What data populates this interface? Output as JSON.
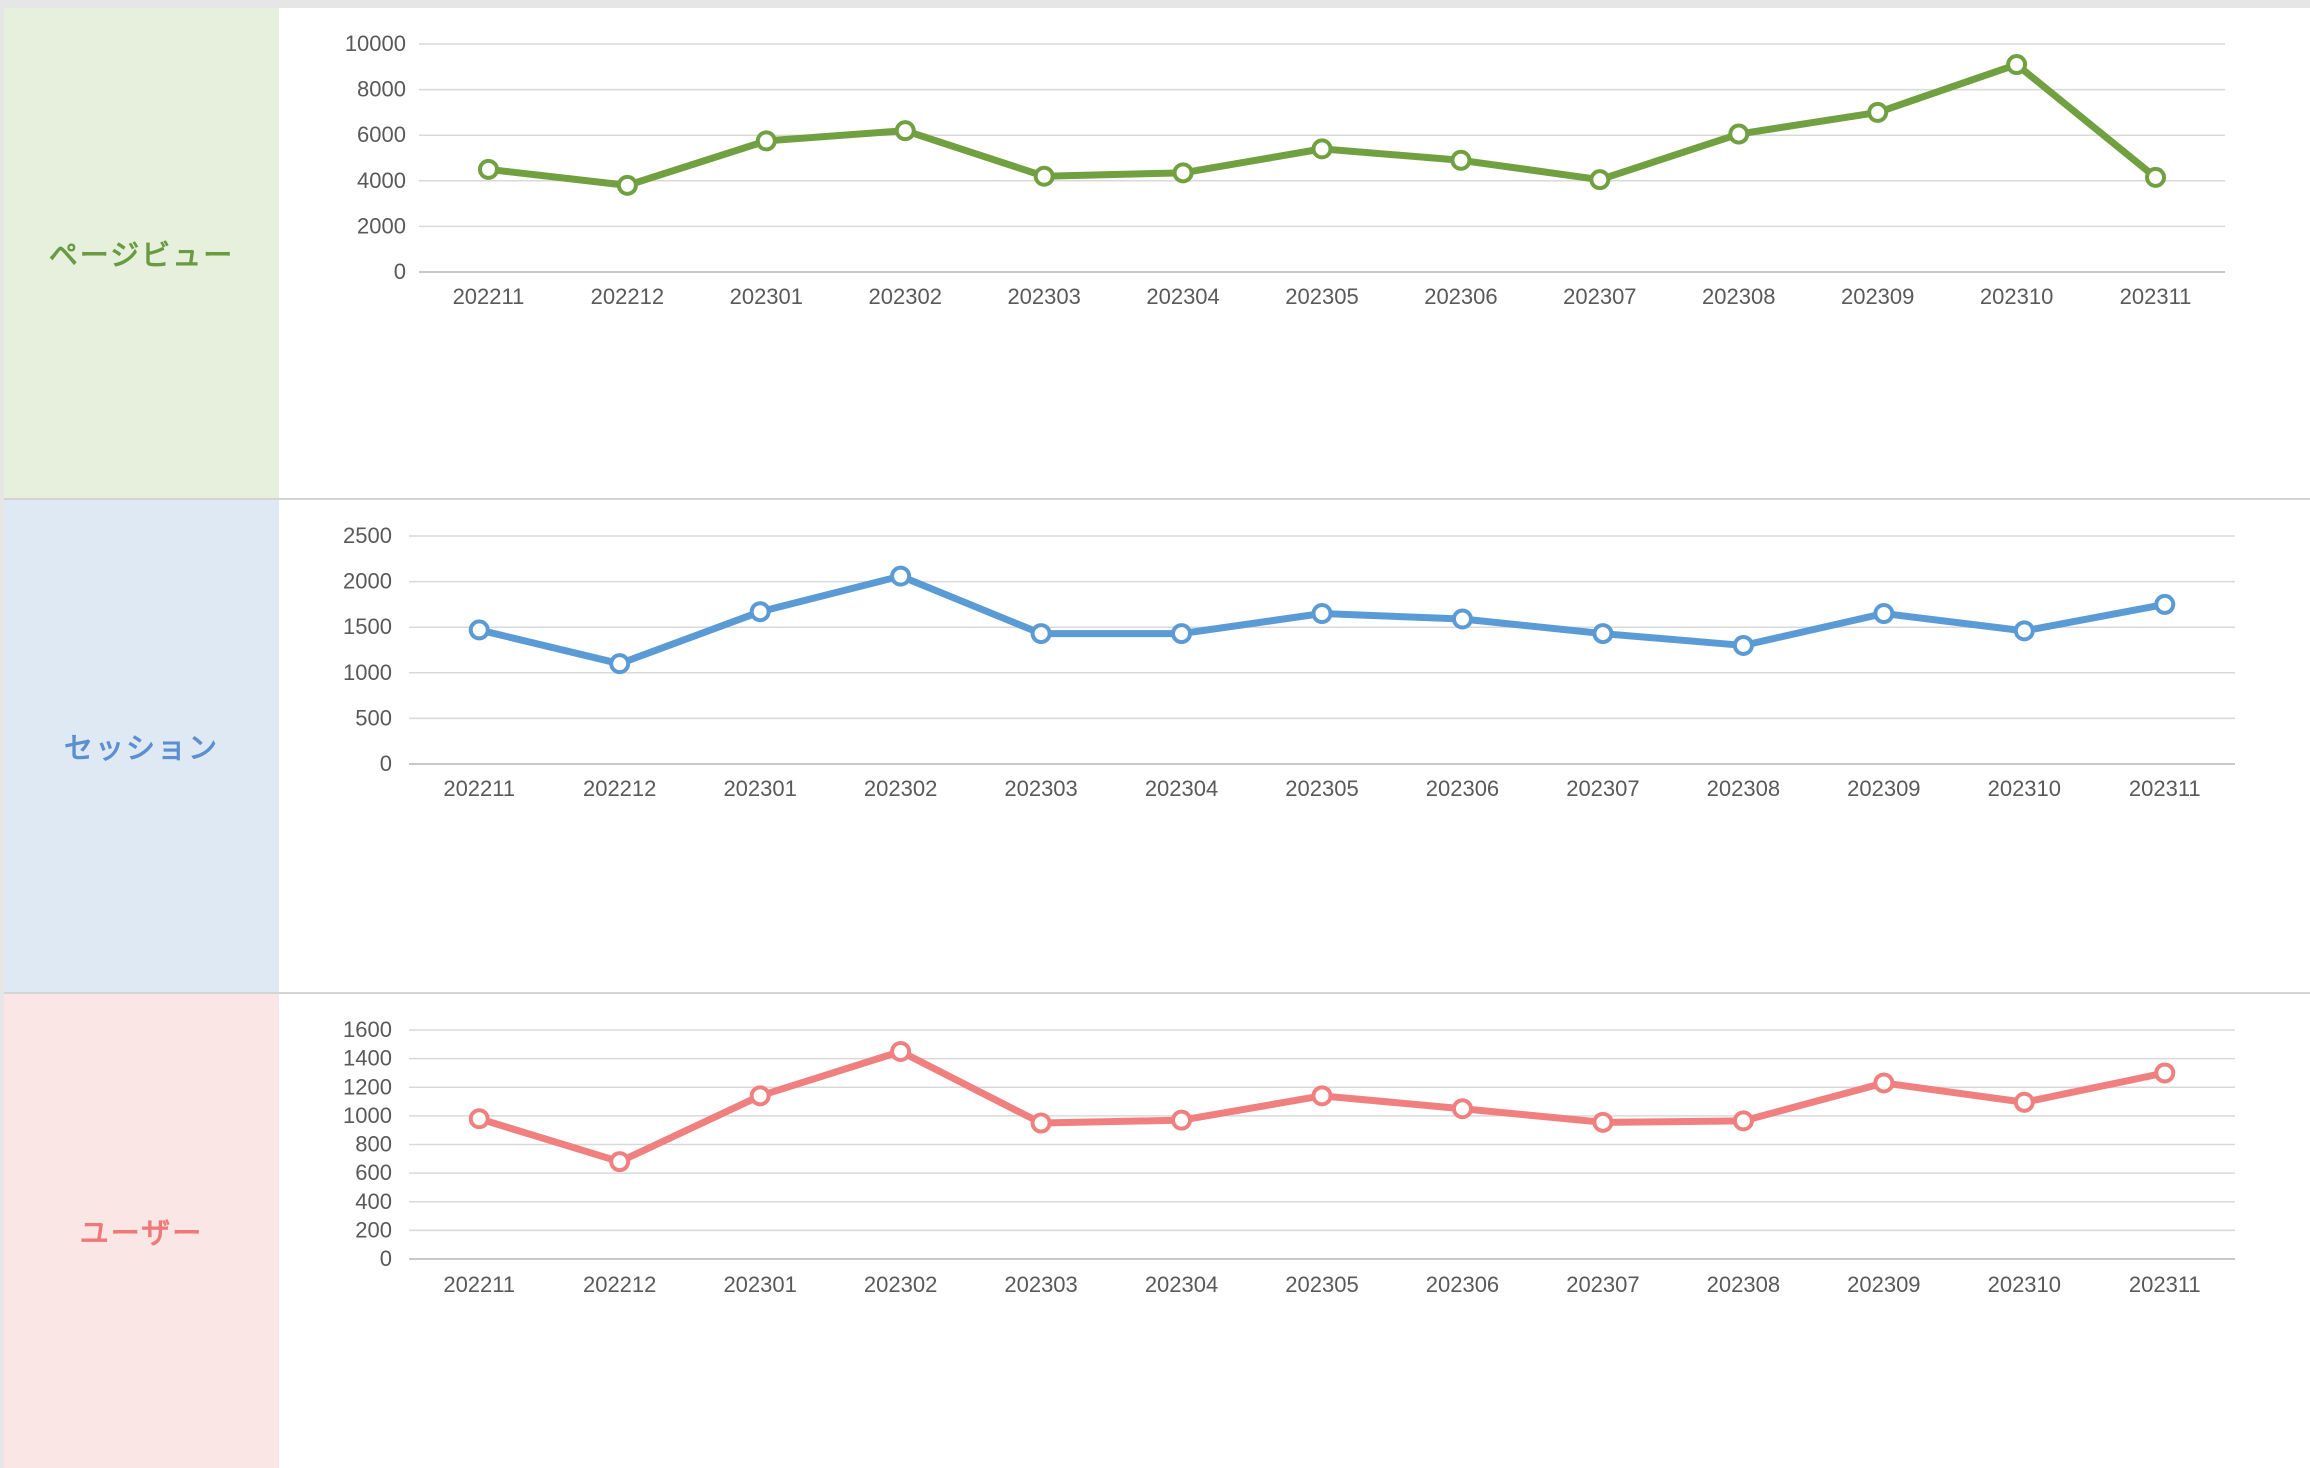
{
  "colors": {
    "page_views": "#70a040",
    "sessions": "#5b9bd5",
    "users": "#f08080"
  },
  "rows": [
    {
      "label": "ページビュー",
      "bg": "#e6f0dc",
      "color": "#6a9a42"
    },
    {
      "label": "セッション",
      "bg": "#dfe9f4",
      "color": "#5b8fcf"
    },
    {
      "label": "ユーザー",
      "bg": "#fbe6e6",
      "color": "#ef7878"
    }
  ],
  "chart_data": [
    {
      "type": "line",
      "categories": [
        "202211",
        "202212",
        "202301",
        "202302",
        "202303",
        "202304",
        "202305",
        "202306",
        "202307",
        "202308",
        "202309",
        "202310",
        "202311"
      ],
      "series": [
        {
          "values": [
            4500,
            3800,
            5750,
            6200,
            4200,
            4350,
            5400,
            4900,
            4050,
            6050,
            7000,
            9100,
            4150
          ]
        }
      ],
      "ylim": [
        0,
        10000
      ],
      "yticks": [
        "0",
        "2000",
        "4000",
        "6000",
        "8000",
        "10000"
      ],
      "grid": true,
      "color": "#70a040"
    },
    {
      "type": "line",
      "categories": [
        "202211",
        "202212",
        "202301",
        "202302",
        "202303",
        "202304",
        "202305",
        "202306",
        "202307",
        "202308",
        "202309",
        "202310",
        "202311"
      ],
      "series": [
        {
          "values": [
            1470,
            1100,
            1670,
            2060,
            1430,
            1430,
            1650,
            1590,
            1430,
            1300,
            1650,
            1460,
            1750
          ]
        }
      ],
      "ylim": [
        0,
        2500
      ],
      "yticks": [
        "0",
        "500",
        "1000",
        "1500",
        "2000",
        "2500"
      ],
      "grid": true,
      "color": "#5b9bd5"
    },
    {
      "type": "line",
      "categories": [
        "202211",
        "202212",
        "202301",
        "202302",
        "202303",
        "202304",
        "202305",
        "202306",
        "202307",
        "202308",
        "202309",
        "202310",
        "202311"
      ],
      "series": [
        {
          "values": [
            980,
            680,
            1140,
            1450,
            950,
            970,
            1140,
            1050,
            955,
            965,
            1230,
            1095,
            1300
          ]
        }
      ],
      "ylim": [
        0,
        1600
      ],
      "yticks": [
        "0",
        "200",
        "400",
        "600",
        "800",
        "1000",
        "1200",
        "1400",
        "1600"
      ],
      "grid": true,
      "color": "#f08080"
    }
  ]
}
